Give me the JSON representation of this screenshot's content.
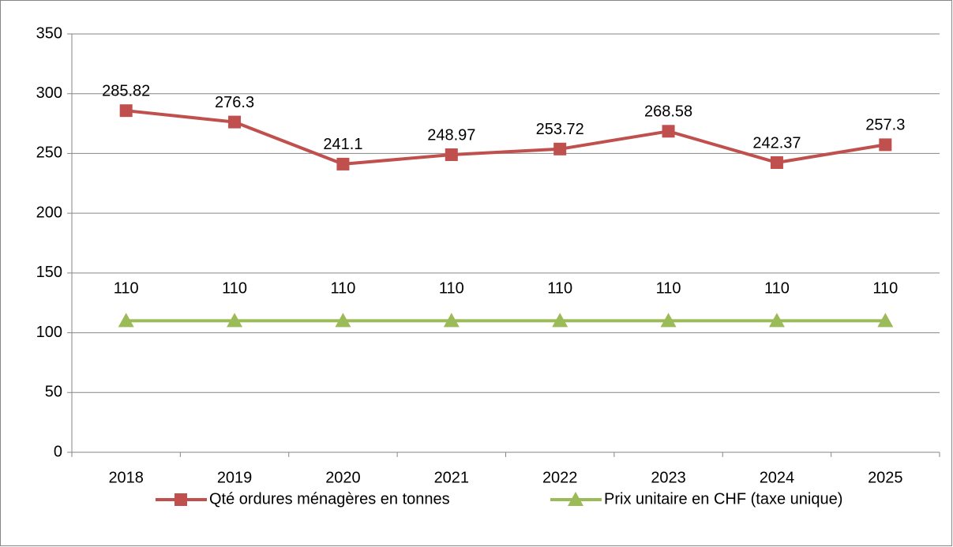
{
  "chart_data": {
    "type": "line",
    "categories": [
      "2018",
      "2019",
      "2020",
      "2021",
      "2022",
      "2023",
      "2024",
      "2025"
    ],
    "series": [
      {
        "name": "Qté ordures ménagères en tonnes",
        "color": "#c0504d",
        "marker": "square",
        "values": [
          285.82,
          276.3,
          241.1,
          248.97,
          253.72,
          268.58,
          242.37,
          257.3
        ]
      },
      {
        "name": "Prix unitaire en CHF (taxe unique)",
        "color": "#9bbb59",
        "marker": "triangle",
        "values": [
          110,
          110,
          110,
          110,
          110,
          110,
          110,
          110
        ]
      }
    ],
    "ylim": [
      0,
      350
    ],
    "yticks": [
      0,
      50,
      100,
      150,
      200,
      250,
      300,
      350
    ],
    "grid": true,
    "data_labels": true,
    "legend": "bottom"
  }
}
